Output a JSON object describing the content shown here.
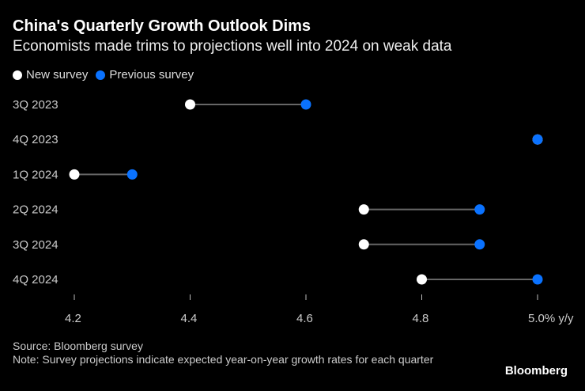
{
  "title": "China's Quarterly Growth Outlook Dims",
  "subtitle": "Economists made trims to projections well into 2024 on weak data",
  "legend": [
    {
      "label": "New survey",
      "color": "#ffffff"
    },
    {
      "label": "Previous survey",
      "color": "#0a72ff"
    }
  ],
  "source": "Source: Bloomberg survey",
  "note": "Note: Survey projections indicate expected year-on-year growth rates for each quarter",
  "logo": "Bloomberg",
  "chart_data": {
    "type": "dumbbell",
    "categories": [
      "3Q 2023",
      "4Q 2023",
      "1Q 2024",
      "2Q 2024",
      "3Q 2024",
      "4Q 2024"
    ],
    "series": [
      {
        "name": "New survey",
        "color": "#ffffff",
        "values": [
          4.4,
          5.0,
          4.2,
          4.7,
          4.7,
          4.8
        ]
      },
      {
        "name": "Previous survey",
        "color": "#0a72ff",
        "values": [
          4.6,
          5.0,
          4.3,
          4.9,
          4.9,
          5.0
        ]
      }
    ],
    "xlim": [
      4.2,
      5.0
    ],
    "xticks": [
      4.2,
      4.4,
      4.6,
      4.8,
      5.0
    ],
    "xtick_labels": [
      "4.2",
      "4.4",
      "4.6",
      "4.8",
      "5.0% y/y"
    ],
    "grid": false,
    "legend_position": "top-left"
  }
}
